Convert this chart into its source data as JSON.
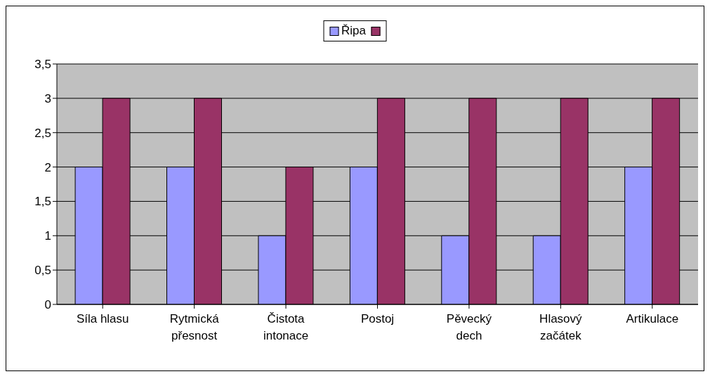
{
  "chart_data": {
    "type": "bar",
    "categories": [
      "Síla hlasu",
      "Rytmická přesnost",
      "Čistota intonace",
      "Postoj",
      "Pěvecký dech",
      "Hlasový začátek",
      "Artikulace"
    ],
    "series": [
      {
        "name": "Řipa",
        "color": "#9999ff",
        "values": [
          2,
          2,
          1,
          2,
          1,
          1,
          2
        ]
      },
      {
        "color": "#993366",
        "values": [
          3,
          3,
          2,
          3,
          3,
          3,
          3
        ]
      }
    ],
    "ylim": [
      0,
      3.5
    ],
    "yticks": [
      0,
      {
        "value": 0.5,
        "label": "0,5"
      },
      1,
      {
        "value": 1.5,
        "label": "1,5"
      },
      2,
      {
        "value": 2.5,
        "label": "2,5"
      },
      3,
      {
        "value": 3.5,
        "label": "3,5"
      }
    ],
    "grid": "y",
    "legend": "top"
  }
}
